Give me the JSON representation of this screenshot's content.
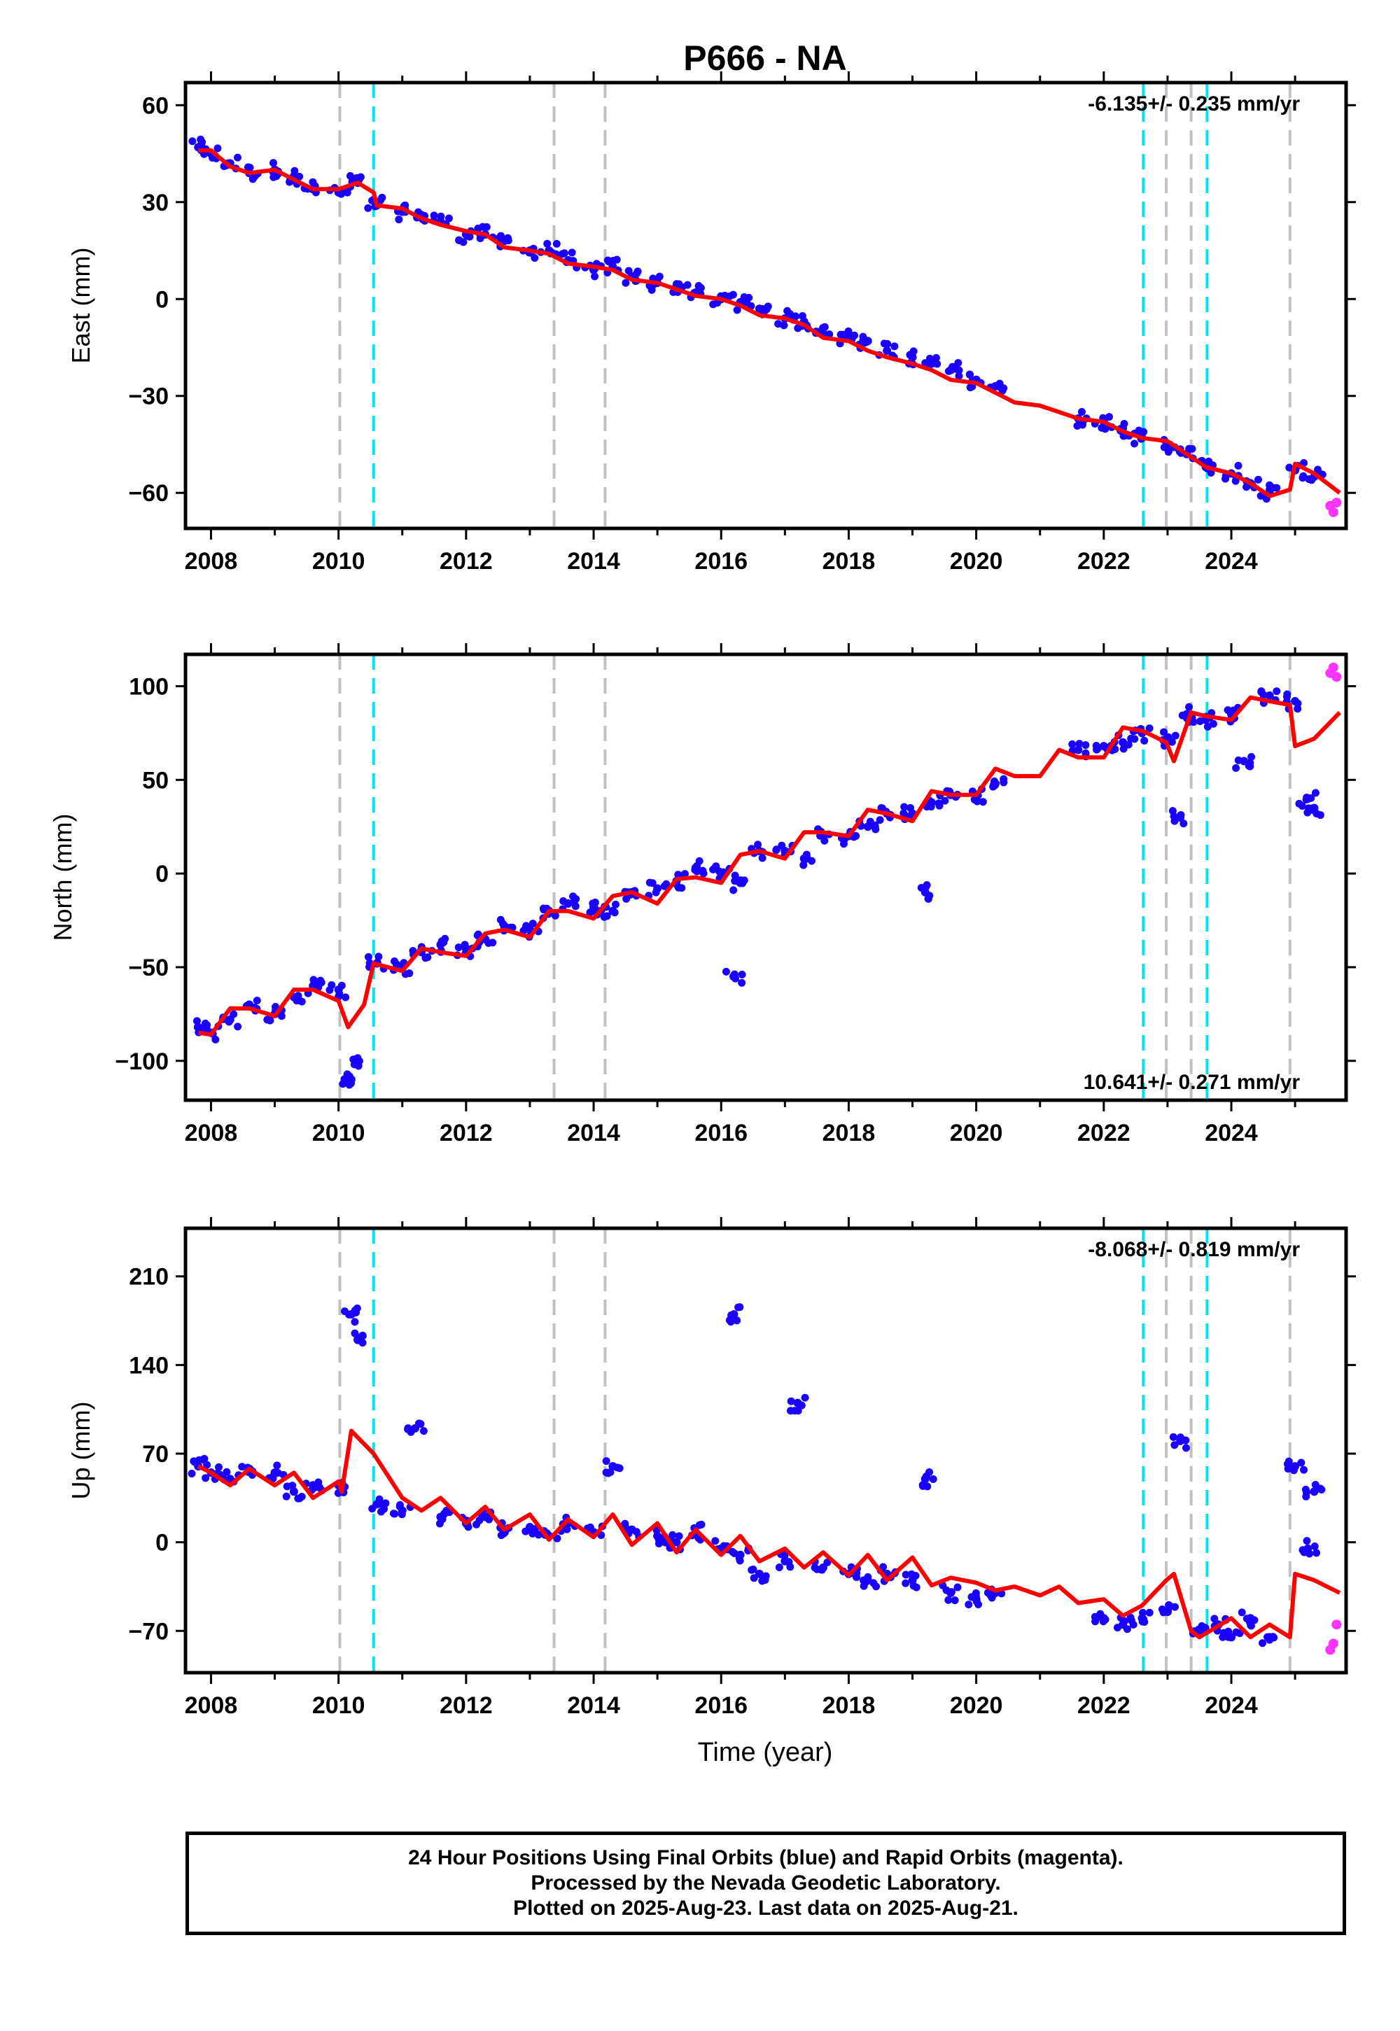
{
  "title": "P666 - NA",
  "xlabel": "Time (year)",
  "x_ticks": [
    "2008",
    "2010",
    "2012",
    "2014",
    "2016",
    "2018",
    "2020",
    "2022",
    "2024"
  ],
  "colors": {
    "final": "#1a00ff",
    "rapid": "#ff33ff",
    "model": "#ff0000",
    "event_gray": "#c0c0c0",
    "event_cyan": "#00e5ee"
  },
  "events": {
    "gray": [
      2010.02,
      2013.38,
      2014.18,
      2022.98,
      2023.37,
      2024.92
    ],
    "cyan": [
      2010.55,
      2022.62,
      2023.62
    ]
  },
  "footer": {
    "line1": "24 Hour Positions Using Final Orbits (blue) and Rapid Orbits (magenta).",
    "line2": "Processed by the Nevada Geodetic Laboratory.",
    "line3": "Plotted on 2025-Aug-23. Last data on 2025-Aug-21."
  },
  "chart_data": [
    {
      "type": "scatter",
      "component": "east",
      "ylabel": "East (mm)",
      "rate_label": "-6.135+/- 0.235 mm/yr",
      "xlim": [
        2007.6,
        2025.8
      ],
      "ylim": [
        -71,
        67
      ],
      "y_ticks": [
        60,
        30,
        0,
        -30,
        -60
      ],
      "y_tick_labels": [
        "60",
        "30",
        "0",
        "−30",
        "−60"
      ],
      "series": [
        {
          "name": "Final Orbits (blue)",
          "x": [
            2007.8,
            2008.0,
            2008.3,
            2008.6,
            2009.0,
            2009.3,
            2009.6,
            2010.0,
            2010.3,
            2010.6,
            2011.0,
            2011.3,
            2011.6,
            2012.0,
            2012.3,
            2012.6,
            2013.0,
            2013.3,
            2013.6,
            2014.0,
            2014.3,
            2014.6,
            2015.0,
            2015.3,
            2015.6,
            2016.0,
            2016.3,
            2016.6,
            2017.0,
            2017.3,
            2017.6,
            2018.0,
            2018.3,
            2018.6,
            2019.0,
            2019.3,
            2019.6,
            2020.0,
            2020.3,
            2021.6,
            2022.0,
            2022.3,
            2022.6,
            2023.0,
            2023.3,
            2023.6,
            2024.0,
            2024.3,
            2024.6,
            2025.0,
            2025.3
          ],
          "y": [
            47,
            45,
            42,
            39,
            40,
            38,
            34,
            33,
            36,
            29,
            27,
            26,
            24,
            20,
            20,
            18,
            15,
            15,
            12,
            9,
            10,
            7,
            5,
            4,
            2,
            0,
            -1,
            -3,
            -6,
            -7,
            -9,
            -12,
            -13,
            -16,
            -18,
            -20,
            -22,
            -25,
            -27,
            -37,
            -38,
            -40,
            -43,
            -45,
            -48,
            -52,
            -54,
            -57,
            -60,
            -53,
            -55
          ]
        },
        {
          "name": "Rapid Orbits (magenta)",
          "x": [
            2025.55,
            2025.6,
            2025.65
          ],
          "y": [
            -64,
            -66,
            -63
          ]
        },
        {
          "name": "model",
          "x": [
            2007.8,
            2008.0,
            2008.3,
            2008.6,
            2009.0,
            2009.3,
            2009.6,
            2010.0,
            2010.3,
            2010.55,
            2010.6,
            2011.0,
            2011.3,
            2011.6,
            2012.0,
            2012.3,
            2012.6,
            2013.0,
            2013.3,
            2013.6,
            2014.0,
            2014.3,
            2014.6,
            2015.0,
            2015.3,
            2015.6,
            2016.0,
            2016.3,
            2016.6,
            2017.0,
            2017.3,
            2017.6,
            2018.0,
            2018.3,
            2018.6,
            2019.0,
            2019.3,
            2019.6,
            2020.0,
            2020.3,
            2020.6,
            2021.0,
            2021.3,
            2021.6,
            2022.0,
            2022.3,
            2022.6,
            2023.0,
            2023.3,
            2023.6,
            2024.0,
            2024.3,
            2024.6,
            2024.92,
            2025.0,
            2025.3,
            2025.7
          ],
          "y": [
            46,
            46,
            41,
            39,
            40,
            37,
            34,
            34,
            36,
            33,
            29,
            28,
            25,
            23,
            21,
            20,
            16,
            15,
            14,
            11,
            10,
            9,
            6,
            5,
            3,
            1,
            0,
            -2,
            -5,
            -6,
            -8,
            -12,
            -13,
            -16,
            -18,
            -20,
            -22,
            -25,
            -26,
            -29,
            -32,
            -33,
            -35,
            -37,
            -38,
            -41,
            -43,
            -44,
            -48,
            -52,
            -54,
            -57,
            -61,
            -59,
            -51,
            -54,
            -60
          ]
        }
      ]
    },
    {
      "type": "scatter",
      "component": "north",
      "ylabel": "North (mm)",
      "rate_label": "10.641+/- 0.271 mm/yr",
      "xlim": [
        2007.6,
        2025.8
      ],
      "ylim": [
        -121,
        117
      ],
      "y_ticks": [
        100,
        50,
        0,
        -50,
        -100
      ],
      "y_tick_labels": [
        "100",
        "50",
        "0",
        "−50",
        "−100"
      ],
      "series": [
        {
          "name": "Final Orbits (blue)",
          "x": [
            2007.8,
            2008.0,
            2008.3,
            2008.6,
            2009.0,
            2009.3,
            2009.6,
            2010.0,
            2010.2,
            2010.3,
            2010.6,
            2011.0,
            2011.3,
            2011.6,
            2012.0,
            2012.3,
            2012.6,
            2013.0,
            2013.3,
            2013.6,
            2014.0,
            2014.3,
            2014.6,
            2015.0,
            2015.3,
            2015.6,
            2016.0,
            2016.2,
            2016.3,
            2016.6,
            2017.0,
            2017.3,
            2017.6,
            2018.0,
            2018.3,
            2018.6,
            2019.0,
            2019.2,
            2019.3,
            2019.6,
            2020.0,
            2020.3,
            2021.6,
            2022.0,
            2022.3,
            2022.6,
            2023.0,
            2023.2,
            2023.3,
            2023.6,
            2024.0,
            2024.2,
            2024.6,
            2025.0,
            2025.2,
            2025.3
          ],
          "y": [
            -82,
            -85,
            -78,
            -70,
            -75,
            -66,
            -60,
            -62,
            -110,
            -100,
            -48,
            -50,
            -42,
            -38,
            -40,
            -35,
            -28,
            -30,
            -20,
            -16,
            -18,
            -20,
            -10,
            -8,
            -4,
            3,
            0,
            -55,
            -5,
            12,
            12,
            8,
            20,
            20,
            25,
            32,
            32,
            -10,
            38,
            42,
            42,
            48,
            66,
            68,
            70,
            75,
            72,
            30,
            85,
            82,
            85,
            60,
            95,
            92,
            40,
            35
          ]
        },
        {
          "name": "Rapid Orbits (magenta)",
          "x": [
            2025.55,
            2025.6,
            2025.65
          ],
          "y": [
            107,
            110,
            105
          ]
        },
        {
          "name": "model",
          "x": [
            2007.8,
            2008.0,
            2008.3,
            2008.6,
            2009.0,
            2009.3,
            2009.6,
            2010.0,
            2010.15,
            2010.4,
            2010.55,
            2011.0,
            2011.3,
            2011.6,
            2012.0,
            2012.3,
            2012.6,
            2013.0,
            2013.3,
            2013.6,
            2014.0,
            2014.3,
            2014.6,
            2015.0,
            2015.3,
            2015.6,
            2016.0,
            2016.3,
            2016.6,
            2017.0,
            2017.3,
            2017.6,
            2018.0,
            2018.3,
            2018.6,
            2019.0,
            2019.3,
            2019.6,
            2020.0,
            2020.3,
            2020.6,
            2021.0,
            2021.3,
            2021.6,
            2022.0,
            2022.3,
            2022.62,
            2022.98,
            2023.1,
            2023.37,
            2023.6,
            2024.0,
            2024.3,
            2024.6,
            2024.92,
            2025.0,
            2025.3,
            2025.7
          ],
          "y": [
            -85,
            -86,
            -72,
            -72,
            -76,
            -62,
            -62,
            -68,
            -82,
            -70,
            -48,
            -52,
            -40,
            -42,
            -44,
            -32,
            -30,
            -34,
            -20,
            -20,
            -24,
            -12,
            -10,
            -16,
            -3,
            -2,
            -5,
            10,
            12,
            8,
            22,
            22,
            20,
            34,
            32,
            28,
            44,
            42,
            42,
            56,
            52,
            52,
            66,
            62,
            62,
            78,
            76,
            70,
            60,
            86,
            84,
            82,
            94,
            92,
            90,
            68,
            72,
            86
          ]
        }
      ]
    },
    {
      "type": "scatter",
      "component": "up",
      "ylabel": "Up (mm)",
      "rate_label": "-8.068+/- 0.819 mm/yr",
      "xlim": [
        2007.6,
        2025.8
      ],
      "ylim": [
        -103,
        248
      ],
      "y_ticks": [
        210,
        140,
        70,
        0,
        -70
      ],
      "y_tick_labels": [
        "210",
        "140",
        "70",
        "0",
        "−70"
      ],
      "series": [
        {
          "name": "Final Orbits (blue)",
          "x": [
            2007.8,
            2008.0,
            2008.3,
            2008.6,
            2009.0,
            2009.3,
            2009.6,
            2010.0,
            2010.2,
            2010.3,
            2010.6,
            2011.0,
            2011.2,
            2011.6,
            2012.0,
            2012.3,
            2012.6,
            2013.0,
            2013.3,
            2013.6,
            2014.0,
            2014.3,
            2014.6,
            2015.0,
            2015.3,
            2015.6,
            2016.0,
            2016.2,
            2016.3,
            2016.6,
            2017.0,
            2017.2,
            2017.6,
            2018.0,
            2018.3,
            2018.6,
            2019.0,
            2019.2,
            2019.6,
            2020.0,
            2020.3,
            2022.0,
            2022.3,
            2022.6,
            2023.0,
            2023.2,
            2023.5,
            2023.8,
            2024.0,
            2024.3,
            2024.6,
            2025.0,
            2025.2,
            2025.3
          ],
          "y": [
            60,
            55,
            50,
            58,
            55,
            40,
            45,
            45,
            180,
            160,
            30,
            25,
            90,
            20,
            15,
            20,
            10,
            12,
            5,
            15,
            8,
            60,
            10,
            5,
            0,
            8,
            -5,
            180,
            -10,
            -25,
            -15,
            110,
            -20,
            -25,
            -30,
            -25,
            -30,
            50,
            -40,
            -45,
            -40,
            -60,
            -65,
            -60,
            -55,
            80,
            -70,
            -65,
            -75,
            -60,
            -75,
            60,
            -5,
            40
          ]
        },
        {
          "name": "Rapid Orbits (magenta)",
          "x": [
            2025.55,
            2025.6,
            2025.65
          ],
          "y": [
            -85,
            -80,
            -65
          ]
        },
        {
          "name": "model",
          "x": [
            2007.8,
            2008.0,
            2008.3,
            2008.6,
            2009.0,
            2009.3,
            2009.6,
            2010.0,
            2010.05,
            2010.2,
            2010.55,
            2011.0,
            2011.3,
            2011.6,
            2012.0,
            2012.3,
            2012.6,
            2013.0,
            2013.3,
            2013.6,
            2014.0,
            2014.3,
            2014.6,
            2015.0,
            2015.3,
            2015.6,
            2016.0,
            2016.3,
            2016.6,
            2017.0,
            2017.3,
            2017.6,
            2018.0,
            2018.3,
            2018.6,
            2019.0,
            2019.3,
            2019.6,
            2020.0,
            2020.3,
            2020.6,
            2021.0,
            2021.3,
            2021.6,
            2022.0,
            2022.3,
            2022.6,
            2022.98,
            2023.1,
            2023.37,
            2023.5,
            2024.0,
            2024.3,
            2024.6,
            2024.92,
            2025.0,
            2025.3,
            2025.7
          ],
          "y": [
            60,
            55,
            45,
            58,
            45,
            55,
            35,
            48,
            40,
            88,
            70,
            35,
            25,
            35,
            15,
            28,
            10,
            22,
            2,
            18,
            4,
            22,
            -2,
            15,
            -8,
            10,
            -10,
            5,
            -15,
            -5,
            -20,
            -8,
            -26,
            -10,
            -30,
            -12,
            -34,
            -28,
            -32,
            -38,
            -35,
            -42,
            -35,
            -48,
            -45,
            -58,
            -50,
            -30,
            -25,
            -70,
            -75,
            -60,
            -75,
            -65,
            -75,
            -25,
            -30,
            -40
          ]
        }
      ]
    }
  ]
}
